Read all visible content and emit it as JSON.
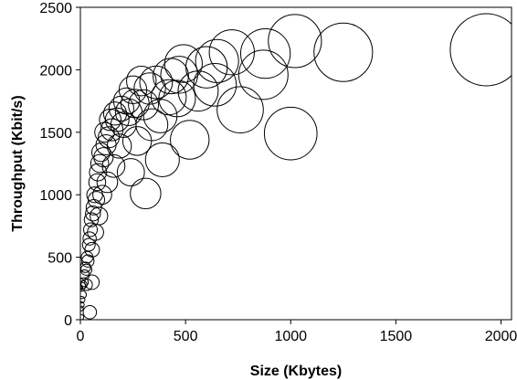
{
  "chart_data": {
    "type": "scatter",
    "title": "",
    "xlabel": "Size (Kbytes)",
    "ylabel": "Throughput (Kbit/s)",
    "xlim": [
      0,
      2050
    ],
    "ylim": [
      0,
      2500
    ],
    "x_ticks": [
      "0",
      "500",
      "1000",
      "1500",
      "2000"
    ],
    "y_ticks": [
      "0",
      "500",
      "1000",
      "1500",
      "2000",
      "2500"
    ],
    "grid": false,
    "legend": "none",
    "marker": "open circle, area proportional to size",
    "series": [
      {
        "points": [
          [
            1930,
            2160
          ],
          [
            1250,
            2140
          ],
          [
            1020,
            2230
          ],
          [
            1000,
            1490
          ],
          [
            880,
            2130
          ],
          [
            870,
            1960
          ],
          [
            760,
            1680
          ],
          [
            720,
            2140
          ],
          [
            650,
            2070
          ],
          [
            640,
            1880
          ],
          [
            600,
            2020
          ],
          [
            560,
            1830
          ],
          [
            520,
            1440
          ],
          [
            490,
            2050
          ],
          [
            470,
            1960
          ],
          [
            460,
            1770
          ],
          [
            430,
            1950
          ],
          [
            420,
            1780
          ],
          [
            390,
            1280
          ],
          [
            380,
            1630
          ],
          [
            360,
            1900
          ],
          [
            340,
            1560
          ],
          [
            330,
            1850
          ],
          [
            310,
            1010
          ],
          [
            300,
            1720
          ],
          [
            290,
            1910
          ],
          [
            270,
            1430
          ],
          [
            260,
            1730
          ],
          [
            250,
            1840
          ],
          [
            240,
            1180
          ],
          [
            230,
            1660
          ],
          [
            220,
            1750
          ],
          [
            205,
            1560
          ],
          [
            195,
            1690
          ],
          [
            185,
            1390
          ],
          [
            175,
            1600
          ],
          [
            165,
            1650
          ],
          [
            158,
            1230
          ],
          [
            150,
            1520
          ],
          [
            142,
            1600
          ],
          [
            135,
            1460
          ],
          [
            128,
            1100
          ],
          [
            122,
            1400
          ],
          [
            115,
            1500
          ],
          [
            110,
            1300
          ],
          [
            104,
            1000
          ],
          [
            98,
            1340
          ],
          [
            92,
            1250
          ],
          [
            88,
            830
          ],
          [
            84,
            1180
          ],
          [
            80,
            1100
          ],
          [
            76,
            960
          ],
          [
            72,
            700
          ],
          [
            68,
            1000
          ],
          [
            64,
            900
          ],
          [
            60,
            850
          ],
          [
            56,
            560
          ],
          [
            52,
            800
          ],
          [
            48,
            720
          ],
          [
            44,
            650
          ],
          [
            40,
            600
          ],
          [
            36,
            470
          ],
          [
            32,
            500
          ],
          [
            28,
            400
          ],
          [
            24,
            420
          ],
          [
            20,
            360
          ],
          [
            16,
            300
          ],
          [
            12,
            280
          ],
          [
            8,
            270
          ],
          [
            45,
            60
          ],
          [
            30,
            280
          ],
          [
            55,
            300
          ],
          [
            10,
            200
          ],
          [
            6,
            160
          ],
          [
            4,
            120
          ],
          [
            3,
            20
          ],
          [
            2,
            90
          ],
          [
            1,
            260
          ]
        ]
      }
    ]
  }
}
